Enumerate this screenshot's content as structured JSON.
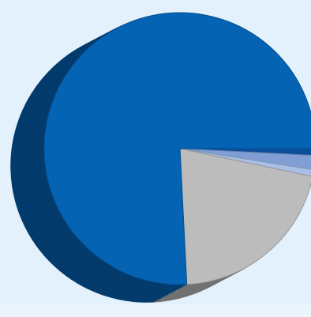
{
  "chart_data": {
    "type": "pie",
    "style": "3d",
    "title": "",
    "legend": "none",
    "data_labels": "none",
    "start_angle_deg": 0,
    "direction": "clockwise",
    "slices": [
      {
        "value": 0.8,
        "color": "#0b4f9c"
      },
      {
        "value": 1.7,
        "color": "#7f9fd4"
      },
      {
        "value": 0.8,
        "color": "#a9bfe6"
      },
      {
        "value": 20.9,
        "color": "#bcbcbc"
      },
      {
        "value": 75.8,
        "color": "#0563b4"
      }
    ]
  },
  "colors": {
    "background": "#e3f1fc",
    "background_band": "#eaf5fd"
  }
}
